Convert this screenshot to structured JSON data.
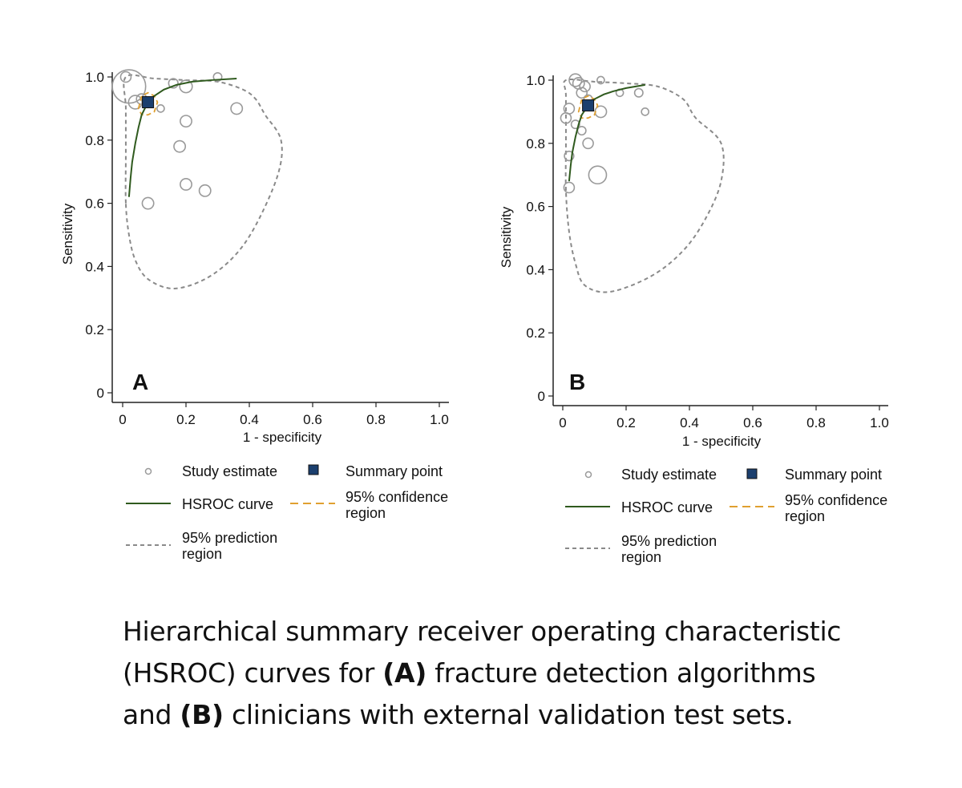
{
  "caption": {
    "line1": "Hierarchical summary receiver operating characteristic",
    "line2_pre": "(HSROC) curves for ",
    "line2_bold": "(A)",
    "line2_post": " fracture detection algorithms",
    "line3_pre": "and ",
    "line3_bold": "(B)",
    "line3_post": " clinicians with external validation test sets."
  },
  "colors": {
    "study": "#9a9a9a",
    "summary_fill": "#1b3f6e",
    "hsroc": "#2f5a1e",
    "confidence": "#e0a030",
    "prediction": "#8a8a8a"
  },
  "chart_data": [
    {
      "panel_label": "A",
      "type": "scatter",
      "xlabel": "1 - specificity",
      "ylabel": "Sensitivity",
      "xlim": [
        0,
        1.0
      ],
      "ylim": [
        0,
        1.0
      ],
      "xticks": [
        "0",
        "0.2",
        "0.4",
        "0.6",
        "0.8",
        "1.0"
      ],
      "yticks": [
        "0",
        "0.2",
        "0.4",
        "0.6",
        "0.8",
        "1.0"
      ],
      "grid": false,
      "studies": [
        {
          "x": 0.02,
          "y": 0.97,
          "size": 3.2
        },
        {
          "x": 0.01,
          "y": 1.0,
          "size": 1.0
        },
        {
          "x": 0.04,
          "y": 0.92,
          "size": 1.3
        },
        {
          "x": 0.06,
          "y": 0.93,
          "size": 1.0
        },
        {
          "x": 0.08,
          "y": 0.92,
          "size": 1.0
        },
        {
          "x": 0.12,
          "y": 0.9,
          "size": 0.7
        },
        {
          "x": 0.16,
          "y": 0.98,
          "size": 0.9
        },
        {
          "x": 0.2,
          "y": 0.97,
          "size": 1.2
        },
        {
          "x": 0.3,
          "y": 1.0,
          "size": 0.8
        },
        {
          "x": 0.36,
          "y": 0.9,
          "size": 1.1
        },
        {
          "x": 0.2,
          "y": 0.86,
          "size": 1.1
        },
        {
          "x": 0.18,
          "y": 0.78,
          "size": 1.1
        },
        {
          "x": 0.2,
          "y": 0.66,
          "size": 1.1
        },
        {
          "x": 0.26,
          "y": 0.64,
          "size": 1.1
        },
        {
          "x": 0.08,
          "y": 0.6,
          "size": 1.1
        }
      ],
      "summary_point": {
        "x": 0.08,
        "y": 0.92
      },
      "hsroc_curve": [
        [
          0.02,
          0.62
        ],
        [
          0.025,
          0.68
        ],
        [
          0.03,
          0.73
        ],
        [
          0.04,
          0.79
        ],
        [
          0.05,
          0.84
        ],
        [
          0.06,
          0.88
        ],
        [
          0.08,
          0.92
        ],
        [
          0.1,
          0.94
        ],
        [
          0.13,
          0.96
        ],
        [
          0.17,
          0.975
        ],
        [
          0.22,
          0.985
        ],
        [
          0.28,
          0.99
        ],
        [
          0.36,
          0.995
        ]
      ],
      "confidence_region": [
        [
          0.05,
          0.9
        ],
        [
          0.06,
          0.94
        ],
        [
          0.08,
          0.95
        ],
        [
          0.1,
          0.94
        ],
        [
          0.11,
          0.92
        ],
        [
          0.1,
          0.89
        ],
        [
          0.08,
          0.88
        ],
        [
          0.06,
          0.88
        ]
      ],
      "prediction_region": [
        [
          0.01,
          0.6
        ],
        [
          0.01,
          0.75
        ],
        [
          0.01,
          0.9
        ],
        [
          0.01,
          1.0
        ],
        [
          0.1,
          0.995
        ],
        [
          0.2,
          0.99
        ],
        [
          0.3,
          0.985
        ],
        [
          0.38,
          0.96
        ],
        [
          0.42,
          0.93
        ],
        [
          0.45,
          0.88
        ],
        [
          0.5,
          0.8
        ],
        [
          0.49,
          0.69
        ],
        [
          0.42,
          0.53
        ],
        [
          0.35,
          0.43
        ],
        [
          0.26,
          0.36
        ],
        [
          0.16,
          0.33
        ],
        [
          0.08,
          0.36
        ],
        [
          0.04,
          0.42
        ],
        [
          0.02,
          0.5
        ]
      ]
    },
    {
      "panel_label": "B",
      "type": "scatter",
      "xlabel": "1 - specificity",
      "ylabel": "Sensitivity",
      "xlim": [
        0,
        1.0
      ],
      "ylim": [
        0,
        1.0
      ],
      "xticks": [
        "0",
        "0.2",
        "0.4",
        "0.6",
        "0.8",
        "1.0"
      ],
      "yticks": [
        "0",
        "0.2",
        "0.4",
        "0.6",
        "0.8",
        "1.0"
      ],
      "grid": false,
      "studies": [
        {
          "x": 0.04,
          "y": 1.0,
          "size": 1.2
        },
        {
          "x": 0.05,
          "y": 0.99,
          "size": 1.1
        },
        {
          "x": 0.07,
          "y": 0.98,
          "size": 1.0
        },
        {
          "x": 0.12,
          "y": 1.0,
          "size": 0.7
        },
        {
          "x": 0.06,
          "y": 0.96,
          "size": 1.0
        },
        {
          "x": 0.08,
          "y": 0.94,
          "size": 0.8
        },
        {
          "x": 0.18,
          "y": 0.96,
          "size": 0.7
        },
        {
          "x": 0.24,
          "y": 0.96,
          "size": 0.8
        },
        {
          "x": 0.26,
          "y": 0.9,
          "size": 0.7
        },
        {
          "x": 0.12,
          "y": 0.9,
          "size": 1.1
        },
        {
          "x": 0.02,
          "y": 0.91,
          "size": 1.0
        },
        {
          "x": 0.01,
          "y": 0.88,
          "size": 1.0
        },
        {
          "x": 0.04,
          "y": 0.86,
          "size": 0.8
        },
        {
          "x": 0.06,
          "y": 0.84,
          "size": 0.8
        },
        {
          "x": 0.08,
          "y": 0.8,
          "size": 1.0
        },
        {
          "x": 0.02,
          "y": 0.76,
          "size": 0.9
        },
        {
          "x": 0.11,
          "y": 0.7,
          "size": 1.7
        },
        {
          "x": 0.02,
          "y": 0.66,
          "size": 1.0
        }
      ],
      "summary_point": {
        "x": 0.08,
        "y": 0.92
      },
      "hsroc_curve": [
        [
          0.02,
          0.68
        ],
        [
          0.025,
          0.73
        ],
        [
          0.03,
          0.77
        ],
        [
          0.04,
          0.82
        ],
        [
          0.05,
          0.86
        ],
        [
          0.06,
          0.89
        ],
        [
          0.08,
          0.92
        ],
        [
          0.1,
          0.94
        ],
        [
          0.13,
          0.955
        ],
        [
          0.16,
          0.965
        ],
        [
          0.2,
          0.975
        ],
        [
          0.26,
          0.985
        ]
      ],
      "confidence_region": [
        [
          0.05,
          0.9
        ],
        [
          0.06,
          0.94
        ],
        [
          0.08,
          0.95
        ],
        [
          0.1,
          0.94
        ],
        [
          0.11,
          0.92
        ],
        [
          0.1,
          0.89
        ],
        [
          0.08,
          0.88
        ],
        [
          0.06,
          0.88
        ]
      ],
      "prediction_region": [
        [
          0.01,
          0.65
        ],
        [
          0.01,
          0.8
        ],
        [
          0.01,
          0.95
        ],
        [
          0.01,
          1.0
        ],
        [
          0.1,
          0.995
        ],
        [
          0.2,
          0.99
        ],
        [
          0.3,
          0.98
        ],
        [
          0.38,
          0.94
        ],
        [
          0.42,
          0.88
        ],
        [
          0.5,
          0.8
        ],
        [
          0.5,
          0.68
        ],
        [
          0.45,
          0.56
        ],
        [
          0.38,
          0.46
        ],
        [
          0.28,
          0.38
        ],
        [
          0.15,
          0.33
        ],
        [
          0.07,
          0.35
        ],
        [
          0.04,
          0.42
        ],
        [
          0.02,
          0.52
        ]
      ]
    }
  ],
  "legend": {
    "study_estimate": "Study estimate",
    "summary_point": "Summary point",
    "hsroc_curve": "HSROC curve",
    "confidence_line1": "95% confidence",
    "confidence_line2": "region",
    "prediction_line1": "95% prediction",
    "prediction_line2": "region"
  }
}
